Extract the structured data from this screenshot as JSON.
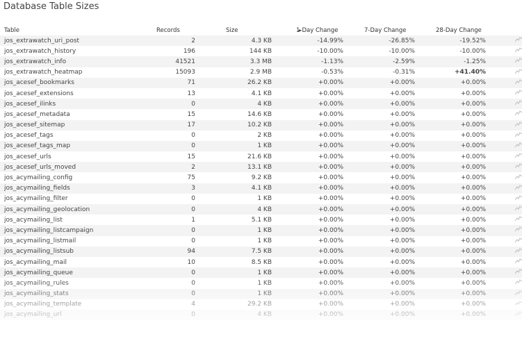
{
  "title": "Database Table Sizes",
  "columns": {
    "table": "Table",
    "records": "Records",
    "size": "Size",
    "d1": "1-Day Change",
    "d7": "7-Day Change",
    "d28": "28-Day Change"
  },
  "sparkline_icon": "sparkline-icon",
  "rows": [
    {
      "name": "jos_extrawatch_uri_post",
      "records": "2",
      "size": "4.3 KB",
      "d1": "-14.99%",
      "d7": "-26.85%",
      "d28": "-19.52%"
    },
    {
      "name": "jos_extrawatch_history",
      "records": "196",
      "size": "144 KB",
      "d1": "-10.00%",
      "d7": "-10.00%",
      "d28": "-10.00%"
    },
    {
      "name": "jos_extrawatch_info",
      "records": "41521",
      "size": "3.3 MB",
      "d1": "-1.13%",
      "d7": "-2.59%",
      "d28": "-1.25%"
    },
    {
      "name": "jos_extrawatch_heatmap",
      "records": "15093",
      "size": "2.9 MB",
      "d1": "-0.53%",
      "d7": "-0.31%",
      "d28": "+41.40%",
      "d28_bold": true
    },
    {
      "name": "jos_acesef_bookmarks",
      "records": "71",
      "size": "26.2 KB",
      "d1": "+0.00%",
      "d7": "+0.00%",
      "d28": "+0.00%"
    },
    {
      "name": "jos_acesef_extensions",
      "records": "13",
      "size": "4.1 KB",
      "d1": "+0.00%",
      "d7": "+0.00%",
      "d28": "+0.00%"
    },
    {
      "name": "jos_acesef_ilinks",
      "records": "0",
      "size": "4 KB",
      "d1": "+0.00%",
      "d7": "+0.00%",
      "d28": "+0.00%"
    },
    {
      "name": "jos_acesef_metadata",
      "records": "15",
      "size": "14.6 KB",
      "d1": "+0.00%",
      "d7": "+0.00%",
      "d28": "+0.00%"
    },
    {
      "name": "jos_acesef_sitemap",
      "records": "17",
      "size": "10.2 KB",
      "d1": "+0.00%",
      "d7": "+0.00%",
      "d28": "+0.00%"
    },
    {
      "name": "jos_acesef_tags",
      "records": "0",
      "size": "2 KB",
      "d1": "+0.00%",
      "d7": "+0.00%",
      "d28": "+0.00%"
    },
    {
      "name": "jos_acesef_tags_map",
      "records": "0",
      "size": "1 KB",
      "d1": "+0.00%",
      "d7": "+0.00%",
      "d28": "+0.00%"
    },
    {
      "name": "jos_acesef_urls",
      "records": "15",
      "size": "21.6 KB",
      "d1": "+0.00%",
      "d7": "+0.00%",
      "d28": "+0.00%"
    },
    {
      "name": "jos_acesef_urls_moved",
      "records": "2",
      "size": "13.1 KB",
      "d1": "+0.00%",
      "d7": "+0.00%",
      "d28": "+0.00%"
    },
    {
      "name": "jos_acymailing_config",
      "records": "75",
      "size": "9.2 KB",
      "d1": "+0.00%",
      "d7": "+0.00%",
      "d28": "+0.00%"
    },
    {
      "name": "jos_acymailing_fields",
      "records": "3",
      "size": "4.1 KB",
      "d1": "+0.00%",
      "d7": "+0.00%",
      "d28": "+0.00%"
    },
    {
      "name": "jos_acymailing_filter",
      "records": "0",
      "size": "1 KB",
      "d1": "+0.00%",
      "d7": "+0.00%",
      "d28": "+0.00%"
    },
    {
      "name": "jos_acymailing_geolocation",
      "records": "0",
      "size": "4 KB",
      "d1": "+0.00%",
      "d7": "+0.00%",
      "d28": "+0.00%"
    },
    {
      "name": "jos_acymailing_list",
      "records": "1",
      "size": "5.1 KB",
      "d1": "+0.00%",
      "d7": "+0.00%",
      "d28": "+0.00%"
    },
    {
      "name": "jos_acymailing_listcampaign",
      "records": "0",
      "size": "1 KB",
      "d1": "+0.00%",
      "d7": "+0.00%",
      "d28": "+0.00%"
    },
    {
      "name": "jos_acymailing_listmail",
      "records": "0",
      "size": "1 KB",
      "d1": "+0.00%",
      "d7": "+0.00%",
      "d28": "+0.00%"
    },
    {
      "name": "jos_acymailing_listsub",
      "records": "94",
      "size": "7.5 KB",
      "d1": "+0.00%",
      "d7": "+0.00%",
      "d28": "+0.00%"
    },
    {
      "name": "jos_acymailing_mail",
      "records": "10",
      "size": "8.5 KB",
      "d1": "+0.00%",
      "d7": "+0.00%",
      "d28": "+0.00%"
    },
    {
      "name": "jos_acymailing_queue",
      "records": "0",
      "size": "1 KB",
      "d1": "+0.00%",
      "d7": "+0.00%",
      "d28": "+0.00%"
    },
    {
      "name": "jos_acymailing_rules",
      "records": "0",
      "size": "1 KB",
      "d1": "+0.00%",
      "d7": "+0.00%",
      "d28": "+0.00%"
    },
    {
      "name": "jos_acymailing_stats",
      "records": "0",
      "size": "1 KB",
      "d1": "+0.00%",
      "d7": "+0.00%",
      "d28": "+0.00%"
    },
    {
      "name": "jos_acymailing_template",
      "records": "4",
      "size": "29.2 KB",
      "d1": "+0.00%",
      "d7": "+0.00%",
      "d28": "+0.00%"
    },
    {
      "name": "jos_acymailing_url",
      "records": "0",
      "size": "4 KB",
      "d1": "+0.00%",
      "d7": "+0.00%",
      "d28": "+0.00%"
    }
  ]
}
